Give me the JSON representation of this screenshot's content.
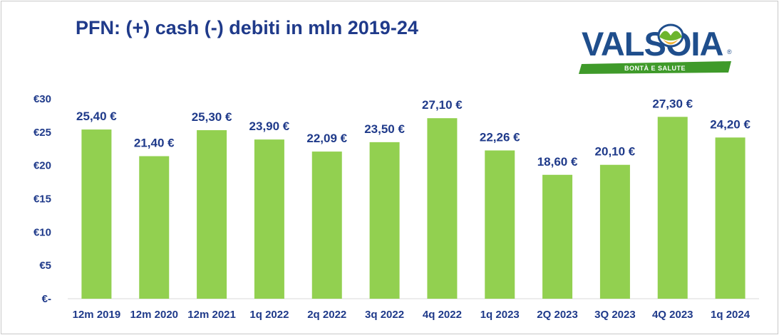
{
  "title": "PFN: (+) cash (-) debiti in mln 2019-24",
  "logo": {
    "brand": "VALSOIA",
    "tagline": "BONTÀ E SALUTE",
    "registered": "®",
    "colors": {
      "brand": "#1f4e8c",
      "leaf": "#6cb52d",
      "ribbon": "#3f9a2a"
    }
  },
  "chart_data": {
    "type": "bar",
    "title": "PFN: (+) cash (-) debiti in mln 2019-24",
    "xlabel": "",
    "ylabel": "",
    "categories": [
      "12m 2019",
      "12m 2020",
      "12m 2021",
      "1q 2022",
      "2q 2022",
      "3q 2022",
      "4q 2022",
      "1q 2023",
      "2Q 2023",
      "3Q 2023",
      "4Q 2023",
      "1q 2024"
    ],
    "values": [
      25.4,
      21.4,
      25.3,
      23.9,
      22.09,
      23.5,
      27.1,
      22.26,
      18.6,
      20.1,
      27.3,
      24.2
    ],
    "data_labels": [
      "25,40 €",
      "21,40 €",
      "25,30 €",
      "23,90 €",
      "22,09 €",
      "23,50 €",
      "27,10 €",
      "22,26 €",
      "18,60 €",
      "20,10 €",
      "27,30 €",
      "24,20 €"
    ],
    "ylim": [
      0,
      30
    ],
    "yticks": [
      0,
      5,
      10,
      15,
      20,
      25,
      30
    ],
    "ytick_labels": [
      "€-",
      "€5",
      "€10",
      "€15",
      "€20",
      "€25",
      "€30"
    ],
    "grid": false,
    "legend": "none",
    "colors": {
      "bar": "#92d050",
      "text": "#1f3a8a",
      "axis": "#d9d9d9"
    }
  }
}
